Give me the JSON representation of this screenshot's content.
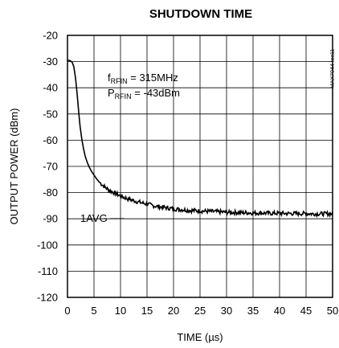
{
  "chart_data": {
    "type": "line",
    "title": "SHUTDOWN TIME",
    "xlabel": "TIME (µs)",
    "ylabel": "OUTPUT POWER (dBm)",
    "xlim": [
      0,
      50
    ],
    "ylim": [
      -120,
      -20
    ],
    "x_ticks": [
      "0",
      "5",
      "10",
      "15",
      "20",
      "25",
      "30",
      "35",
      "40",
      "45",
      "50"
    ],
    "y_ticks": [
      "-20",
      "-30",
      "-40",
      "-50",
      "-60",
      "-70",
      "-80",
      "-90",
      "-100",
      "-110",
      "-120"
    ],
    "grid": true,
    "annotations": {
      "freq_main": "f",
      "freq_sub": "RFIN",
      "freq_val": " = 315MHz",
      "pow_main": "P",
      "pow_sub": "RFIN",
      "pow_val": " = -43dBm",
      "avg": "1AVG"
    },
    "figure_code": "MAX7044 toc11",
    "series": [
      {
        "x": [
          0,
          0.3,
          0.6,
          0.9,
          1.2,
          1.5,
          1.8,
          2.1,
          2.4,
          2.7,
          3.0,
          3.3,
          3.6,
          4.0,
          4.5,
          5.0,
          5.5,
          6.0,
          7.0,
          8.0,
          9.0,
          10.0,
          11.0,
          12.0,
          13.0,
          14.0,
          15.0,
          16.0,
          17.0,
          18.0,
          19.0,
          20.0,
          21.0,
          22.0,
          23.0,
          24.0,
          25.0,
          26.0,
          27.0,
          28.0,
          29.0,
          30.0,
          31.0,
          32.0,
          33.0,
          34.0,
          35.0,
          36.0,
          37.0,
          38.0,
          39.0,
          40.0,
          41.0,
          42.0,
          43.0,
          44.0,
          45.0,
          46.0,
          47.0,
          48.0,
          49.0,
          50.0
        ],
        "values": [
          -29.5,
          -29.5,
          -29.8,
          -30.3,
          -32,
          -36,
          -42,
          -49,
          -55,
          -59.5,
          -63,
          -65.8,
          -67.8,
          -69.8,
          -71.8,
          -73.3,
          -74.8,
          -76,
          -77.8,
          -79.3,
          -80.3,
          -81.3,
          -82.1,
          -82.8,
          -83.4,
          -83.9,
          -84.4,
          -84.9,
          -85.3,
          -85.6,
          -85.9,
          -86.2,
          -86.4,
          -86.6,
          -86.8,
          -86.9,
          -87.0,
          -87.1,
          -87.2,
          -87.3,
          -87.4,
          -87.5,
          -87.6,
          -87.6,
          -87.7,
          -87.7,
          -87.8,
          -87.8,
          -87.8,
          -87.9,
          -87.9,
          -87.9,
          -88.0,
          -88.0,
          -88.0,
          -88.0,
          -88.0,
          -88.1,
          -88.1,
          -88.1,
          -88.1,
          -88.1
        ]
      }
    ]
  }
}
